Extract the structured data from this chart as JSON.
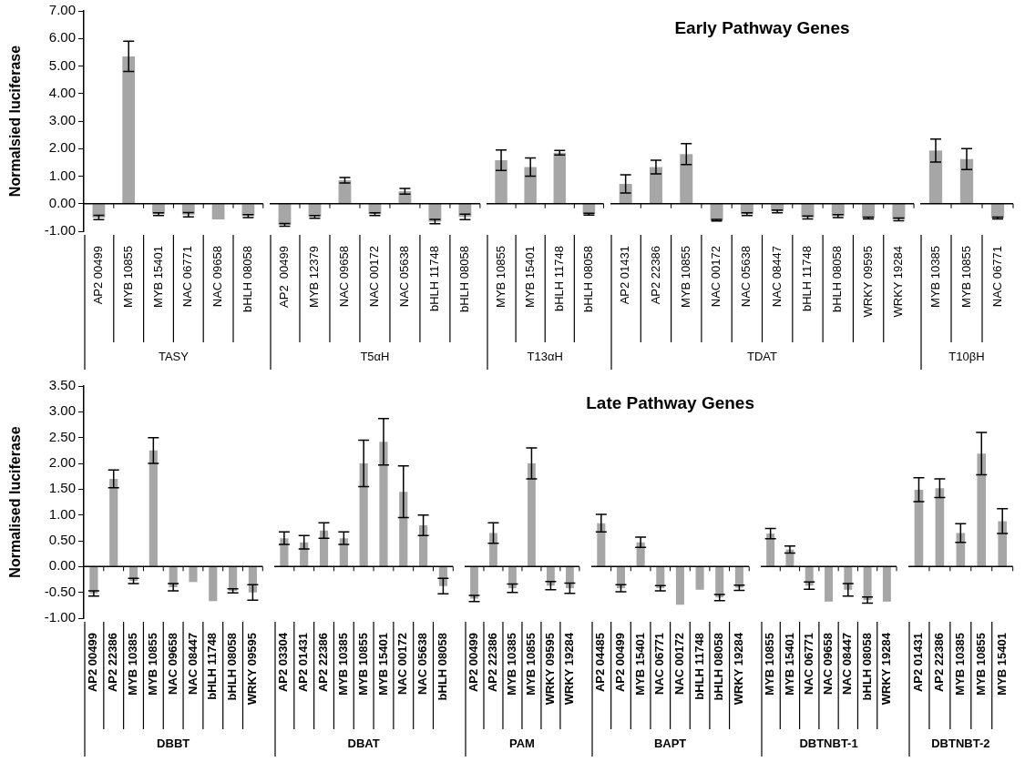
{
  "chart_data": [
    {
      "type": "bar",
      "ylabel": "Normalsied luciferase",
      "xlabel": "TASY",
      "color": "#a6a6a6",
      "categories": [
        "AP2 00499",
        "MYB 10855",
        "MYB 15401",
        "NAC 06771",
        "NAC 09658",
        "bHLH 08058"
      ],
      "values": [
        -0.5,
        5.35,
        -0.38,
        -0.4,
        -0.57,
        -0.45
      ],
      "errors": [
        0.08,
        0.55,
        0.05,
        0.08,
        null,
        0.05
      ],
      "ylim": [
        -1,
        7
      ],
      "yticks": [
        {
          "value": -1,
          "label": "-1.00"
        },
        {
          "value": 0,
          "label": "0.00"
        },
        {
          "value": 1,
          "label": "1.00"
        },
        {
          "value": 2,
          "label": "2.00"
        },
        {
          "value": 3,
          "label": "3.00"
        },
        {
          "value": 4,
          "label": "4.00"
        },
        {
          "value": 5,
          "label": "5.00"
        },
        {
          "value": 6,
          "label": "6.00"
        },
        {
          "value": 7,
          "label": "7.00"
        }
      ]
    },
    {
      "type": "bar",
      "xlabel": "T5αH",
      "color": "#a6a6a6",
      "categories": [
        "AP2  00499",
        "MYB 12379",
        "NAC 09658",
        "NAC 00172",
        "NAC 05638",
        "bHLH 11748",
        "bHLH 08058"
      ],
      "values": [
        -0.77,
        -0.48,
        0.85,
        -0.38,
        0.45,
        -0.65,
        -0.48
      ],
      "errors": [
        0.05,
        0.05,
        0.1,
        0.05,
        0.1,
        0.08,
        0.1
      ],
      "ylim": [
        -1,
        7
      ],
      "tick_labels": "x"
    },
    {
      "type": "bar",
      "xlabel": "T13αH",
      "color": "#a6a6a6",
      "categories": [
        "MYB 10855",
        "MYB 15401",
        "bHLH 11748",
        "bHLH 08058"
      ],
      "values": [
        1.58,
        1.33,
        1.85,
        -0.38
      ],
      "errors": [
        0.37,
        0.33,
        0.08,
        0.03
      ],
      "ylim": [
        -1,
        7
      ],
      "tick_labels": "x"
    },
    {
      "type": "bar",
      "title": "Early Pathway Genes",
      "xlabel": "TDAT",
      "color": "#a6a6a6",
      "categories": [
        "AP2 01431",
        "AP2 22386",
        "MYB 10855",
        "NAC 00172",
        "NAC 05638",
        "NAC 08447",
        "bHLH 11748",
        "bHLH 08058",
        "WRKY 09595",
        "WRKY 19284"
      ],
      "values": [
        0.72,
        1.33,
        1.8,
        -0.6,
        -0.38,
        -0.28,
        -0.5,
        -0.45,
        -0.52,
        -0.57
      ],
      "errors": [
        0.33,
        0.25,
        0.38,
        0.03,
        0.05,
        0.05,
        0.05,
        0.05,
        0.03,
        0.05
      ],
      "ylim": [
        -1,
        7
      ],
      "tick_labels": "x"
    },
    {
      "type": "bar",
      "xlabel": "T10βH",
      "color": "#a6a6a6",
      "categories": [
        "MYB 10385",
        "MYB 10855",
        "NAC 06771"
      ],
      "values": [
        1.93,
        1.62,
        -0.52
      ],
      "errors": [
        0.42,
        0.38,
        0.03
      ],
      "ylim": [
        -1,
        7
      ],
      "tick_labels": "x"
    },
    {
      "type": "bar",
      "ylabel": "Normalised luciferase",
      "xlabel": "DBBT",
      "color": "#a6a6a6",
      "categories": [
        "AP2 00499",
        "AP2 22386",
        "MYB 10385",
        "MYB 10855",
        "NAC 09658",
        "NAC 08447",
        "bHLH 11748",
        "bHLH 08058",
        "WRKY 09595"
      ],
      "values": [
        -0.52,
        1.7,
        -0.28,
        2.25,
        -0.4,
        -0.3,
        -0.67,
        -0.47,
        -0.5
      ],
      "errors": [
        0.05,
        0.17,
        0.05,
        0.25,
        0.07,
        null,
        null,
        0.04,
        0.15
      ],
      "ylim": [
        -1,
        3.5
      ],
      "yticks": [
        {
          "value": -1,
          "label": "-1.00"
        },
        {
          "value": -0.5,
          "label": "-0.50"
        },
        {
          "value": 0,
          "label": "0.00"
        },
        {
          "value": 0.5,
          "label": "0.50"
        },
        {
          "value": 1,
          "label": "1.00"
        },
        {
          "value": 1.5,
          "label": "1.50"
        },
        {
          "value": 2,
          "label": "2.00"
        },
        {
          "value": 2.5,
          "label": "2.50"
        },
        {
          "value": 3,
          "label": "3.00"
        },
        {
          "value": 3.5,
          "label": "3.50"
        }
      ]
    },
    {
      "type": "bar",
      "xlabel": "DBAT",
      "color": "#a6a6a6",
      "categories": [
        "AP2 03304",
        "AP2 01431",
        "AP2 22386",
        "MYB 10385",
        "MYB 10855",
        "MYB 15401",
        "NAC 00172",
        "NAC 05638",
        "bHLH 08058"
      ],
      "values": [
        0.55,
        0.47,
        0.7,
        0.55,
        2.0,
        2.42,
        1.45,
        0.8,
        -0.38
      ],
      "errors": [
        0.12,
        0.13,
        0.15,
        0.12,
        0.45,
        0.45,
        0.5,
        0.2,
        0.15
      ],
      "ylim": [
        -1,
        3.5
      ],
      "tick_labels": "x"
    },
    {
      "type": "bar",
      "xlabel": "PAM",
      "color": "#a6a6a6",
      "categories": [
        "AP2 00499",
        "AP2 22386",
        "MYB 10385",
        "MYB 10855",
        "WRKY 09595",
        "WRKY 19284"
      ],
      "values": [
        -0.62,
        0.65,
        -0.42,
        2.0,
        -0.37,
        -0.42
      ],
      "errors": [
        0.06,
        0.2,
        0.08,
        0.3,
        0.08,
        0.1
      ],
      "ylim": [
        -1,
        3.5
      ],
      "tick_labels": "x"
    },
    {
      "type": "bar",
      "title": "Late Pathway Genes",
      "xlabel": "BAPT",
      "color": "#a6a6a6",
      "categories": [
        "AP2 04485",
        "AP2 00499",
        "MYB 15401",
        "NAC 06771",
        "NAC 00172",
        "bHLH 11748",
        "bHLH 08058",
        "WRKY 19284"
      ],
      "values": [
        0.84,
        -0.42,
        0.47,
        -0.42,
        -0.74,
        -0.45,
        -0.6,
        -0.41
      ],
      "errors": [
        0.17,
        0.07,
        0.1,
        0.05,
        null,
        null,
        0.06,
        0.05
      ],
      "ylim": [
        -1,
        3.5
      ],
      "tick_labels": "x"
    },
    {
      "type": "bar",
      "xlabel": "DBTNBT-1",
      "color": "#a6a6a6",
      "categories": [
        "MYB 10855",
        "MYB 15401",
        "NAC 06771",
        "NAC 09658",
        "NAC 08447",
        "bHLH 08058",
        "WRKY 19284"
      ],
      "values": [
        0.64,
        0.33,
        -0.37,
        -0.68,
        -0.45,
        -0.65,
        -0.68
      ],
      "errors": [
        0.1,
        0.07,
        0.07,
        null,
        0.12,
        0.06,
        null
      ],
      "ylim": [
        -1,
        3.5
      ],
      "tick_labels": "x"
    },
    {
      "type": "bar",
      "xlabel": "DBTNBT-2",
      "color": "#a6a6a6",
      "categories": [
        "AP2 01431",
        "AP2 22386",
        "MYB 10385",
        "MYB 10855",
        "MYB 15401"
      ],
      "values": [
        1.49,
        1.52,
        0.65,
        2.19,
        0.88
      ],
      "errors": [
        0.23,
        0.18,
        0.18,
        0.41,
        0.24
      ],
      "ylim": [
        -1,
        3.5
      ],
      "tick_labels": "x"
    }
  ]
}
